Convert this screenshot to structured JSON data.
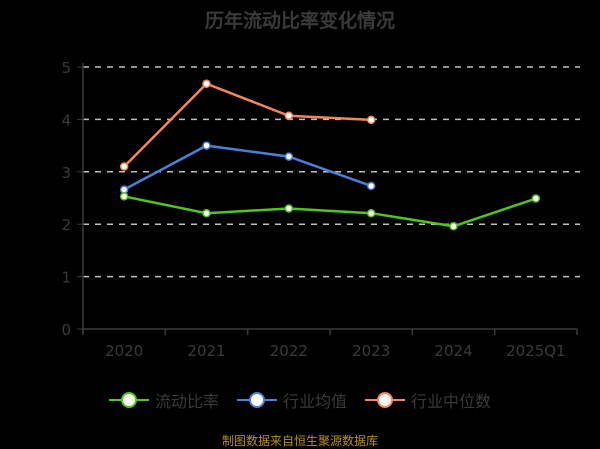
{
  "title": "历年流动比率变化情况",
  "footer": "制图数据来自恒生聚源数据库",
  "legend": [
    {
      "label": "流动比率",
      "color": "#52c41a"
    },
    {
      "label": "行业均值",
      "color": "#4a7fd8"
    },
    {
      "label": "行业中位数",
      "color": "#f5855b"
    }
  ],
  "chart_data": {
    "type": "line",
    "title": "历年流动比率变化情况",
    "xlabel": "",
    "ylabel": "",
    "categories": [
      "2020",
      "2021",
      "2022",
      "2023",
      "2024",
      "2025Q1"
    ],
    "ylim": [
      0,
      5
    ],
    "yticks": [
      0,
      1,
      2,
      3,
      4,
      5
    ],
    "grid": true,
    "legend_position": "bottom",
    "series": [
      {
        "name": "流动比率",
        "color": "#52c41a",
        "values": [
          2.53,
          2.21,
          2.3,
          2.21,
          1.96,
          2.49
        ]
      },
      {
        "name": "行业均值",
        "color": "#4a7fd8",
        "values": [
          2.66,
          3.5,
          3.29,
          2.73,
          null,
          null
        ]
      },
      {
        "name": "行业中位数",
        "color": "#f5855b",
        "values": [
          3.1,
          4.68,
          4.07,
          3.99,
          null,
          null
        ]
      }
    ]
  }
}
